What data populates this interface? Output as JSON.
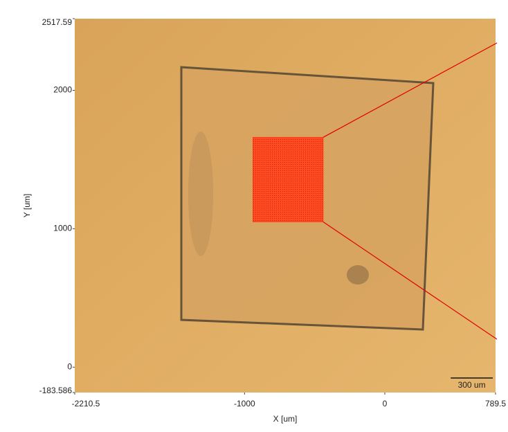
{
  "chart_data": {
    "type": "image",
    "xlabel": "X [um]",
    "ylabel": "Y [um]",
    "xlim": [
      -2210.5,
      789.5
    ],
    "ylim": [
      -183.586,
      2517.59
    ],
    "xticks": [
      -2210.5,
      -1000,
      0,
      789.5
    ],
    "yticks": [
      -183.586,
      0,
      1000,
      2000,
      2517.59
    ],
    "highlight": {
      "x": [
        -940,
        -440
      ],
      "y": [
        1050,
        1660
      ],
      "color": "#ff3b1a"
    },
    "scale_bar": {
      "label": "300 um",
      "length": 300
    }
  }
}
